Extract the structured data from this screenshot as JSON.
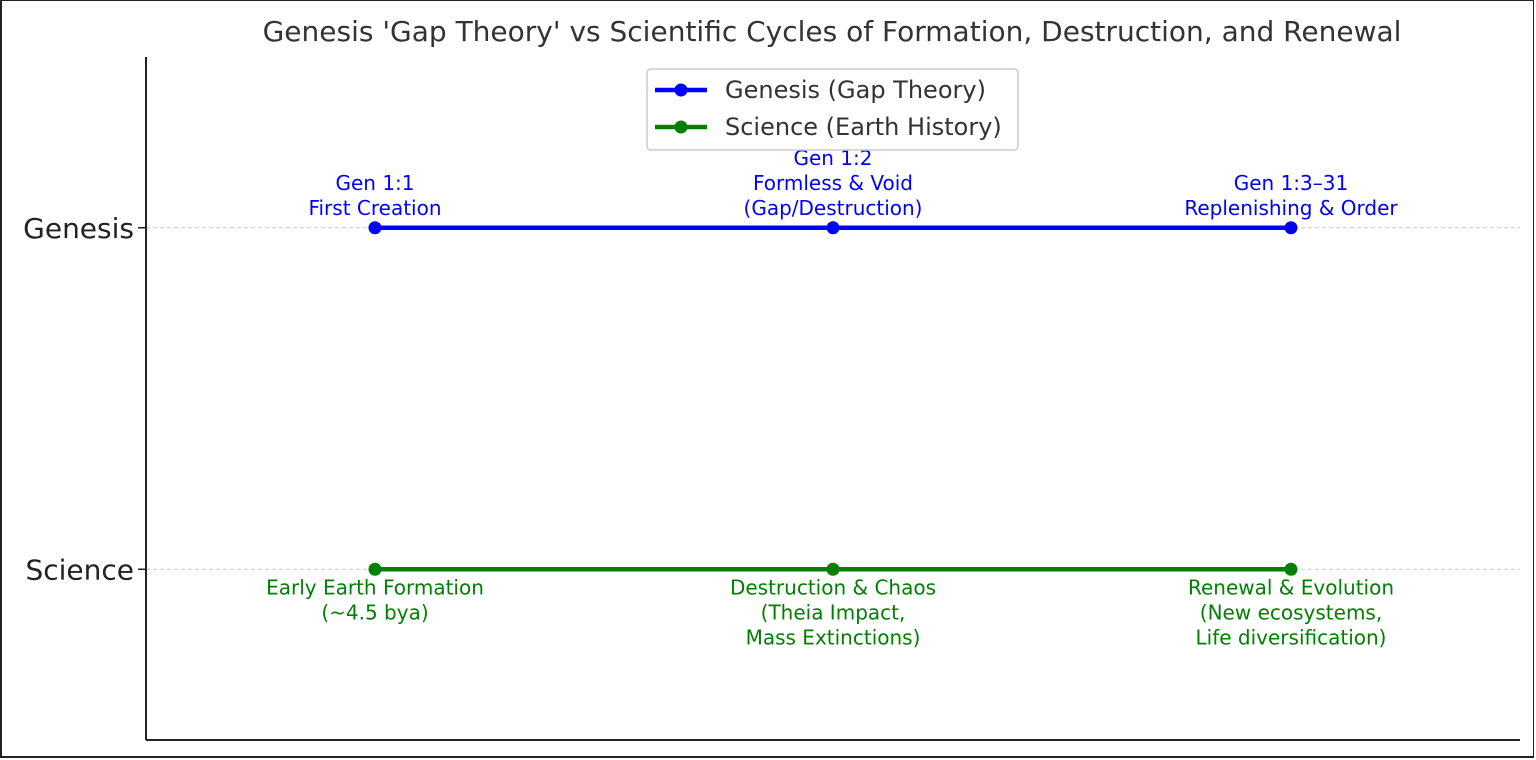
{
  "chart_data": {
    "type": "line",
    "title": "Genesis 'Gap Theory' vs Scientific Cycles of Formation, Destruction, and Renewal",
    "xlabel": "",
    "ylabel": "",
    "x": [
      0,
      1,
      2
    ],
    "xlim": [
      -0.5,
      2.5
    ],
    "ylim": [
      -0.5,
      1.5
    ],
    "yticks": [
      {
        "value": 1,
        "label": "Genesis"
      },
      {
        "value": 0,
        "label": "Science"
      }
    ],
    "grid": "y-dashed",
    "legend_placement": "top-center",
    "series": [
      {
        "name": "Genesis (Gap Theory)",
        "color": "#0000ff",
        "level": 1,
        "label_position": "above",
        "annotations": [
          "Gen 1:1\nFirst Creation",
          "Gen 1:2\nFormless & Void\n(Gap/Destruction)",
          "Gen 1:3–31\nReplenishing & Order"
        ]
      },
      {
        "name": "Science (Earth History)",
        "color": "#008000",
        "level": 0,
        "label_position": "below",
        "annotations": [
          "Early Earth Formation\n(~4.5 bya)",
          "Destruction & Chaos\n(Theia Impact,\nMass Extinctions)",
          "Renewal & Evolution\n(New ecosystems,\nLife diversification)"
        ]
      }
    ]
  }
}
